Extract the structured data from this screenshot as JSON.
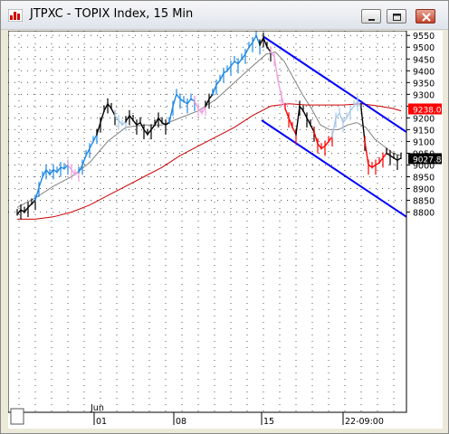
{
  "window": {
    "title": "JTPXC - TOPIX Index, 15 Min",
    "icons": {
      "app": "chart-app-icon",
      "minimize": "minimize-icon",
      "maximize": "maximize-icon",
      "close": "close-icon"
    }
  },
  "chart_data": {
    "type": "line",
    "title": "JTPXC - TOPIX Index, 15 Min",
    "xlabel": "",
    "ylabel": "",
    "ylim": [
      7950,
      9570
    ],
    "xlim": [
      0,
      440
    ],
    "y_ticks": [
      {
        "value": 9550,
        "label": "9550"
      },
      {
        "value": 9500,
        "label": "9500"
      },
      {
        "value": 9450,
        "label": "9450"
      },
      {
        "value": 9400,
        "label": "9400"
      },
      {
        "value": 9350,
        "label": "9350"
      },
      {
        "value": 9300,
        "label": "9300"
      },
      {
        "value": 9250,
        "label": "9250"
      },
      {
        "value": 9200,
        "label": "9200"
      },
      {
        "value": 9150,
        "label": "9150"
      },
      {
        "value": 9100,
        "label": "9100"
      },
      {
        "value": 9050,
        "label": "9050"
      },
      {
        "value": 9000,
        "label": "9000"
      },
      {
        "value": 8950,
        "label": "8950"
      },
      {
        "value": 8900,
        "label": "8900"
      },
      {
        "value": 8850,
        "label": "8850"
      },
      {
        "value": 8800,
        "label": "8800"
      }
    ],
    "x_ticks": [
      {
        "x": 95,
        "label": "01"
      },
      {
        "x": 183,
        "label": "08"
      },
      {
        "x": 280,
        "label": "15"
      },
      {
        "x": 370,
        "label": "22-09:00"
      }
    ],
    "month_label": {
      "x": 95,
      "label": "Jun"
    },
    "price_tags": [
      {
        "value": 9238,
        "label": "9238.0",
        "color": "#ff0000"
      },
      {
        "value": 9027,
        "label": "9027.8",
        "color": "#000000"
      }
    ],
    "grid": true,
    "colors": {
      "up": "#1e88e5",
      "down": "#ff0000",
      "neutral": "#000000",
      "weak_up": "#a8c8e8",
      "weak_down": "#f0a0e0",
      "channel": "#0000ff",
      "ma_long": "#cc0000",
      "ma_short": "#808080"
    },
    "series": [
      {
        "role": "price",
        "segments": [
          {
            "color": "neutral",
            "points": [
              [
                10,
                8790
              ],
              [
                14,
                8810
              ],
              [
                18,
                8800
              ],
              [
                22,
                8820
              ],
              [
                26,
                8835
              ],
              [
                30,
                8850
              ]
            ]
          },
          {
            "color": "up",
            "points": [
              [
                30,
                8850
              ],
              [
                34,
                8905
              ],
              [
                38,
                8950
              ],
              [
                42,
                8980
              ],
              [
                46,
                8960
              ],
              [
                50,
                8980
              ],
              [
                54,
                8970
              ],
              [
                58,
                8990
              ],
              [
                62,
                8985
              ],
              [
                66,
                9000
              ]
            ]
          },
          {
            "color": "weak_down",
            "points": [
              [
                66,
                9000
              ],
              [
                70,
                8980
              ],
              [
                74,
                8960
              ],
              [
                78,
                8970
              ]
            ]
          },
          {
            "color": "up",
            "points": [
              [
                78,
                8970
              ],
              [
                82,
                9000
              ],
              [
                86,
                9040
              ],
              [
                90,
                9070
              ],
              [
                94,
                9100
              ],
              [
                98,
                9130
              ]
            ]
          },
          {
            "color": "neutral",
            "points": [
              [
                98,
                9130
              ],
              [
                102,
                9180
              ],
              [
                106,
                9230
              ],
              [
                110,
                9260
              ],
              [
                114,
                9240
              ],
              [
                118,
                9210
              ]
            ]
          },
          {
            "color": "weak_up",
            "points": [
              [
                118,
                9210
              ],
              [
                122,
                9190
              ],
              [
                126,
                9170
              ],
              [
                130,
                9185
              ]
            ]
          },
          {
            "color": "neutral",
            "points": [
              [
                130,
                9185
              ],
              [
                134,
                9210
              ],
              [
                138,
                9190
              ],
              [
                142,
                9170
              ],
              [
                146,
                9180
              ],
              [
                150,
                9150
              ],
              [
                154,
                9130
              ],
              [
                158,
                9150
              ],
              [
                162,
                9170
              ],
              [
                166,
                9200
              ],
              [
                170,
                9180
              ],
              [
                174,
                9170
              ],
              [
                178,
                9180
              ]
            ]
          },
          {
            "color": "up",
            "points": [
              [
                178,
                9180
              ],
              [
                182,
                9250
              ],
              [
                186,
                9300
              ],
              [
                190,
                9280
              ],
              [
                194,
                9270
              ],
              [
                198,
                9260
              ],
              [
                202,
                9280
              ],
              [
                206,
                9270
              ]
            ]
          },
          {
            "color": "weak_down",
            "points": [
              [
                206,
                9270
              ],
              [
                210,
                9240
              ],
              [
                214,
                9220
              ],
              [
                218,
                9250
              ]
            ]
          },
          {
            "color": "neutral",
            "points": [
              [
                218,
                9250
              ],
              [
                222,
                9280
              ],
              [
                226,
                9300
              ]
            ]
          },
          {
            "color": "up",
            "points": [
              [
                226,
                9300
              ],
              [
                230,
                9340
              ],
              [
                234,
                9360
              ],
              [
                238,
                9390
              ],
              [
                242,
                9400
              ],
              [
                246,
                9420
              ],
              [
                250,
                9440
              ],
              [
                254,
                9430
              ],
              [
                258,
                9450
              ],
              [
                262,
                9470
              ],
              [
                266,
                9500
              ],
              [
                270,
                9520
              ],
              [
                274,
                9550
              ],
              [
                278,
                9510
              ]
            ]
          },
          {
            "color": "neutral",
            "points": [
              [
                278,
                9510
              ],
              [
                282,
                9540
              ],
              [
                286,
                9500
              ],
              [
                290,
                9480
              ]
            ]
          },
          {
            "color": "weak_down",
            "points": [
              [
                290,
                9480
              ],
              [
                294,
                9460
              ],
              [
                298,
                9360
              ],
              [
                302,
                9290
              ],
              [
                306,
                9240
              ]
            ]
          },
          {
            "color": "down",
            "points": [
              [
                306,
                9240
              ],
              [
                310,
                9200
              ],
              [
                314,
                9160
              ],
              [
                318,
                9130
              ]
            ]
          },
          {
            "color": "neutral",
            "points": [
              [
                318,
                9130
              ],
              [
                322,
                9250
              ],
              [
                326,
                9230
              ],
              [
                330,
                9200
              ],
              [
                334,
                9170
              ],
              [
                338,
                9140
              ]
            ]
          },
          {
            "color": "down",
            "points": [
              [
                338,
                9140
              ],
              [
                342,
                9090
              ],
              [
                346,
                9070
              ],
              [
                350,
                9080
              ],
              [
                354,
                9100
              ],
              [
                358,
                9120
              ]
            ]
          },
          {
            "color": "weak_up",
            "points": [
              [
                358,
                9120
              ],
              [
                362,
                9200
              ],
              [
                366,
                9220
              ],
              [
                370,
                9180
              ],
              [
                374,
                9200
              ],
              [
                378,
                9230
              ],
              [
                382,
                9250
              ],
              [
                386,
                9270
              ],
              [
                390,
                9240
              ]
            ]
          },
          {
            "color": "neutral",
            "points": [
              [
                390,
                9240
              ],
              [
                394,
                9100
              ]
            ]
          },
          {
            "color": "down",
            "points": [
              [
                394,
                9100
              ],
              [
                398,
                9000
              ],
              [
                402,
                8990
              ],
              [
                406,
                9000
              ],
              [
                410,
                9010
              ],
              [
                414,
                9030
              ],
              [
                418,
                9050
              ]
            ]
          },
          {
            "color": "neutral",
            "points": [
              [
                418,
                9050
              ],
              [
                422,
                9040
              ],
              [
                426,
                9030
              ],
              [
                430,
                9020
              ],
              [
                434,
                9030
              ]
            ]
          }
        ]
      },
      {
        "role": "ma_short",
        "color": "ma_short",
        "points": [
          [
            10,
            8820
          ],
          [
            30,
            8860
          ],
          [
            50,
            8910
          ],
          [
            70,
            8950
          ],
          [
            90,
            9010
          ],
          [
            110,
            9100
          ],
          [
            130,
            9160
          ],
          [
            150,
            9170
          ],
          [
            170,
            9170
          ],
          [
            190,
            9200
          ],
          [
            210,
            9230
          ],
          [
            230,
            9280
          ],
          [
            250,
            9350
          ],
          [
            270,
            9420
          ],
          [
            285,
            9470
          ],
          [
            295,
            9480
          ],
          [
            305,
            9440
          ],
          [
            315,
            9370
          ],
          [
            325,
            9300
          ],
          [
            335,
            9240
          ],
          [
            345,
            9170
          ],
          [
            355,
            9150
          ],
          [
            365,
            9150
          ],
          [
            375,
            9170
          ],
          [
            385,
            9180
          ],
          [
            395,
            9160
          ],
          [
            405,
            9110
          ],
          [
            415,
            9080
          ],
          [
            425,
            9050
          ],
          [
            434,
            9040
          ]
        ]
      },
      {
        "role": "ma_long",
        "color": "ma_long",
        "points": [
          [
            10,
            8770
          ],
          [
            30,
            8770
          ],
          [
            50,
            8780
          ],
          [
            70,
            8800
          ],
          [
            90,
            8830
          ],
          [
            110,
            8870
          ],
          [
            130,
            8910
          ],
          [
            150,
            8950
          ],
          [
            170,
            8990
          ],
          [
            190,
            9040
          ],
          [
            210,
            9080
          ],
          [
            230,
            9120
          ],
          [
            250,
            9160
          ],
          [
            270,
            9210
          ],
          [
            290,
            9250
          ],
          [
            310,
            9260
          ],
          [
            330,
            9255
          ],
          [
            350,
            9255
          ],
          [
            370,
            9255
          ],
          [
            390,
            9260
          ],
          [
            410,
            9250
          ],
          [
            425,
            9240
          ],
          [
            434,
            9230
          ]
        ]
      },
      {
        "role": "channel",
        "color": "channel",
        "points": [
          [
            282,
            9545
          ],
          [
            440,
            9140
          ]
        ]
      },
      {
        "role": "channel",
        "color": "channel",
        "points": [
          [
            280,
            9190
          ],
          [
            440,
            8780
          ]
        ]
      }
    ]
  }
}
